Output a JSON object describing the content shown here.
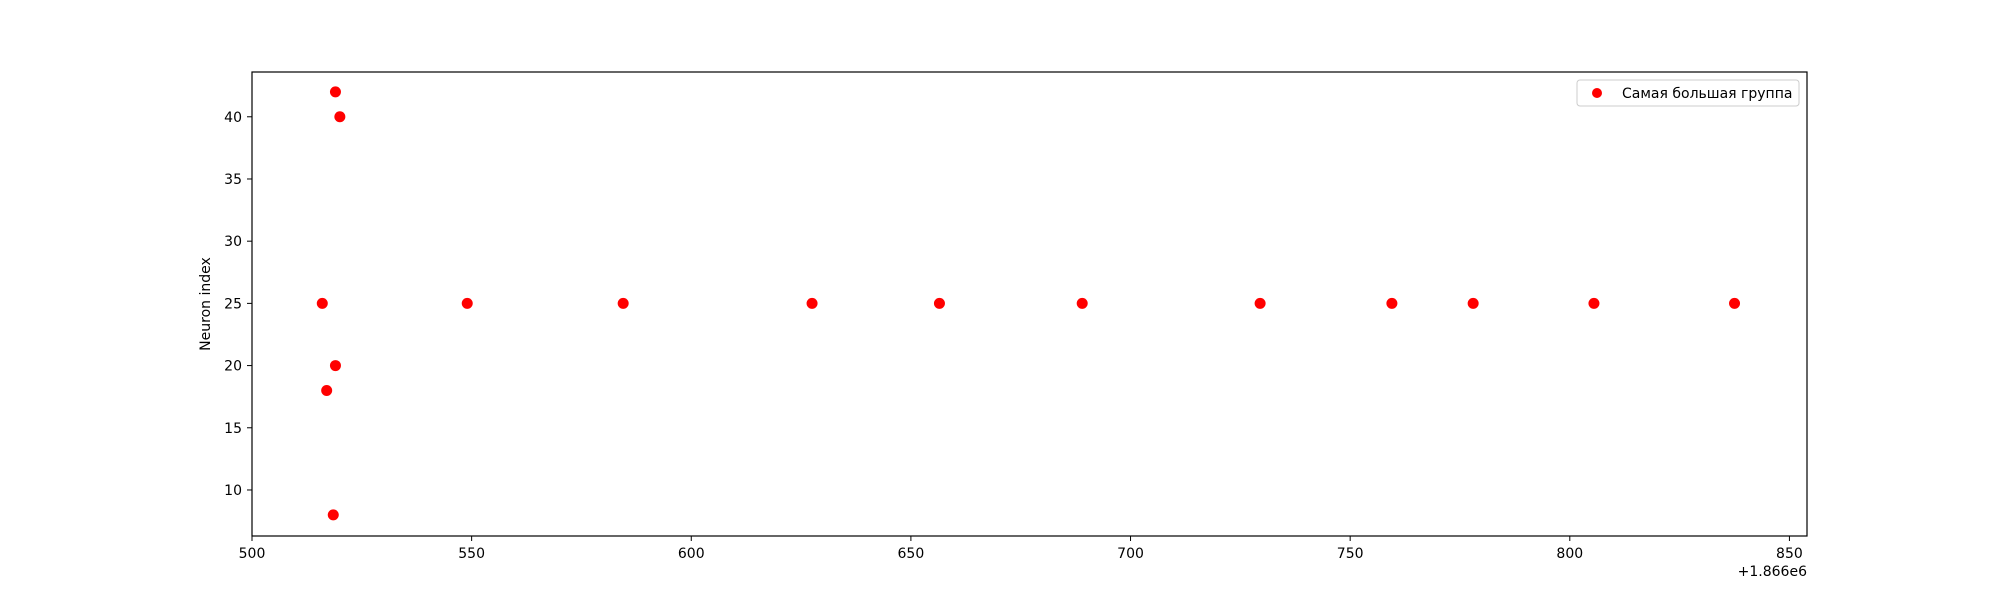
{
  "chart_data": {
    "type": "scatter",
    "title": "",
    "xlabel": "",
    "ylabel": "Neuron index",
    "x_offset_label": "+1.866e6",
    "xlim": [
      1866500,
      1866854
    ],
    "ylim": [
      6.3,
      43.6
    ],
    "x_ticks": [
      1866500,
      1866550,
      1866600,
      1866650,
      1866700,
      1866750,
      1866800,
      1866850
    ],
    "x_tick_labels": [
      "500",
      "550",
      "600",
      "650",
      "700",
      "750",
      "800",
      "850"
    ],
    "y_ticks": [
      10,
      15,
      20,
      25,
      30,
      35,
      40
    ],
    "y_tick_labels": [
      "10",
      "15",
      "20",
      "25",
      "30",
      "35",
      "40"
    ],
    "grid": false,
    "legend": {
      "position": "top-right",
      "entries": [
        "Самая большая группа"
      ]
    },
    "series": [
      {
        "name": "Самая большая группа",
        "color": "#ff0000",
        "points": [
          {
            "x": 1866516,
            "y": 25
          },
          {
            "x": 1866517,
            "y": 18
          },
          {
            "x": 1866518.5,
            "y": 8
          },
          {
            "x": 1866519,
            "y": 42
          },
          {
            "x": 1866519,
            "y": 20
          },
          {
            "x": 1866520,
            "y": 40
          },
          {
            "x": 1866549,
            "y": 25
          },
          {
            "x": 1866584.5,
            "y": 25
          },
          {
            "x": 1866627.5,
            "y": 25
          },
          {
            "x": 1866656.5,
            "y": 25
          },
          {
            "x": 1866689,
            "y": 25
          },
          {
            "x": 1866729.5,
            "y": 25
          },
          {
            "x": 1866759.5,
            "y": 25
          },
          {
            "x": 1866778,
            "y": 25
          },
          {
            "x": 1866805.5,
            "y": 25
          },
          {
            "x": 1866837.5,
            "y": 25
          }
        ]
      }
    ]
  }
}
